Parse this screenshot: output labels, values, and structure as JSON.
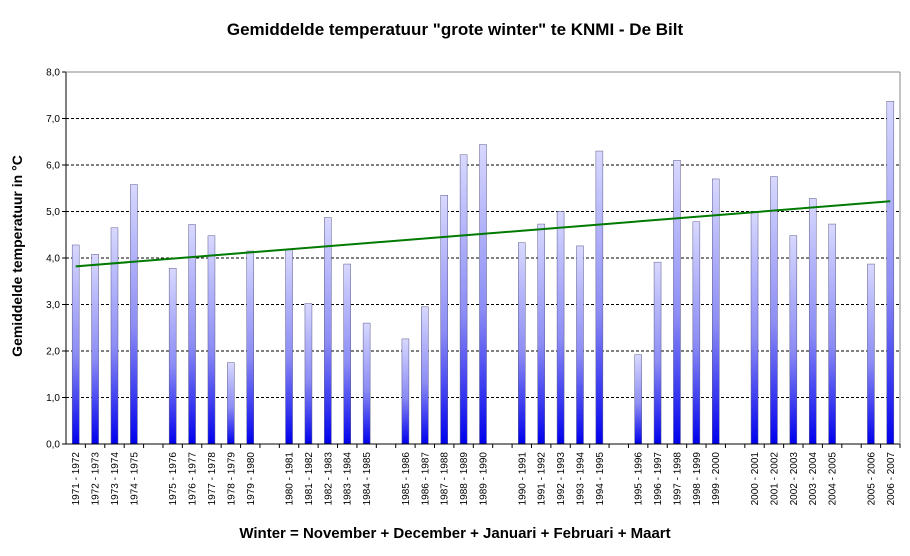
{
  "chart_data": {
    "type": "bar",
    "title": "Gemiddelde temperatuur \"grote winter\" te KNMI - De Bilt",
    "xlabel": "Winter = November + December + Januari + Februari + Maart",
    "ylabel": "Gemiddelde temperatuur in °C",
    "ylim": [
      0,
      8
    ],
    "yticks": [
      "0,0",
      "1,0",
      "2,0",
      "3,0",
      "4,0",
      "5,0",
      "6,0",
      "7,0",
      "8,0"
    ],
    "grid": true,
    "categories": [
      "1971 - 1972",
      "1972 - 1973",
      "1973 - 1974",
      "1974 - 1975",
      "",
      "1975 - 1976",
      "1976 - 1977",
      "1977 - 1978",
      "1978 - 1979",
      "1979 - 1980",
      "",
      "1980 - 1981",
      "1981 - 1982",
      "1982 - 1983",
      "1983 - 1984",
      "1984 - 1985",
      "",
      "1985 - 1986",
      "1986 - 1987",
      "1987 - 1988",
      "1988 - 1989",
      "1989 - 1990",
      "",
      "1990 - 1991",
      "1991 - 1992",
      "1992 - 1993",
      "1993 - 1994",
      "1994 - 1995",
      "",
      "1995 - 1996",
      "1996 - 1997",
      "1997 - 1998",
      "1998 - 1999",
      "1999 - 2000",
      "",
      "2000 - 2001",
      "2001 - 2002",
      "2002 - 2003",
      "2003 - 2004",
      "2004 - 2005",
      "",
      "2005 - 2006",
      "2006 - 2007"
    ],
    "values": [
      4.28,
      4.08,
      4.65,
      5.58,
      null,
      3.78,
      4.72,
      4.48,
      1.75,
      4.15,
      null,
      4.18,
      3.02,
      4.87,
      3.87,
      2.6,
      null,
      2.26,
      2.95,
      5.35,
      6.22,
      6.44,
      null,
      4.33,
      4.73,
      5.0,
      4.26,
      6.3,
      null,
      1.92,
      3.91,
      6.1,
      4.78,
      5.7,
      null,
      5.0,
      5.75,
      4.48,
      5.28,
      4.73,
      null,
      3.87,
      7.37
    ],
    "trendline": {
      "start": 3.82,
      "end": 5.22
    },
    "colors": {
      "bar_top": "#d8d8ff",
      "bar_bottom": "#0000ee",
      "trend": "#007a00",
      "grid": "#000000"
    }
  }
}
